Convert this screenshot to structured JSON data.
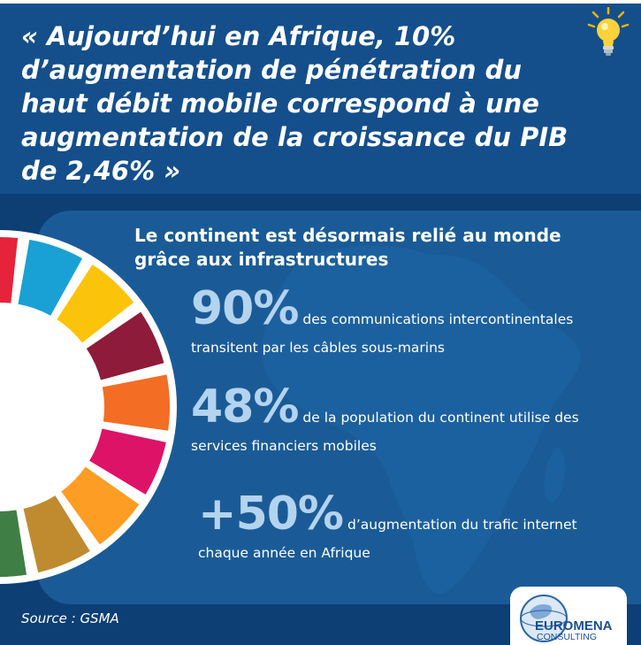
{
  "quote": "« Aujourd’hui en Afrique, 10% d’augmentation de pénétration du haut débit mobile correspond à une augmentation de la croissance du PIB de 2,46% »",
  "subtitle": "Le continent est désormais relié au monde grâce aux infrastructures",
  "stats": [
    {
      "value": "90%",
      "text": "des communications intercontinentales transitent par les câbles sous-marins"
    },
    {
      "value": "48%",
      "text": "de la population du continent utilise des services financiers mobiles"
    },
    {
      "value": "+50%",
      "text": "d’augmentation du trafic internet chaque année en Afrique"
    }
  ],
  "source": "Source : GSMA",
  "logo": {
    "name": "EUROMENA",
    "sub": "CONSULTING"
  },
  "colors": {
    "header_bg": "#144f8c",
    "body_bg": "#0d3f75",
    "panel_bg": "#1a5b97",
    "stat_value": "#b4d3ef"
  },
  "wheel_segment_colors": [
    "#e5243b",
    "#19a1d6",
    "#fcc30b",
    "#8e1b3a",
    "#f36d25",
    "#dd1367",
    "#fd9d24",
    "#bf8b2e",
    "#3f7e44"
  ],
  "icons": {
    "bulb": "lightbulb-icon",
    "map": "africa-map-icon",
    "wheel": "sdg-wheel-icon",
    "logo": "globe-logo-icon"
  }
}
